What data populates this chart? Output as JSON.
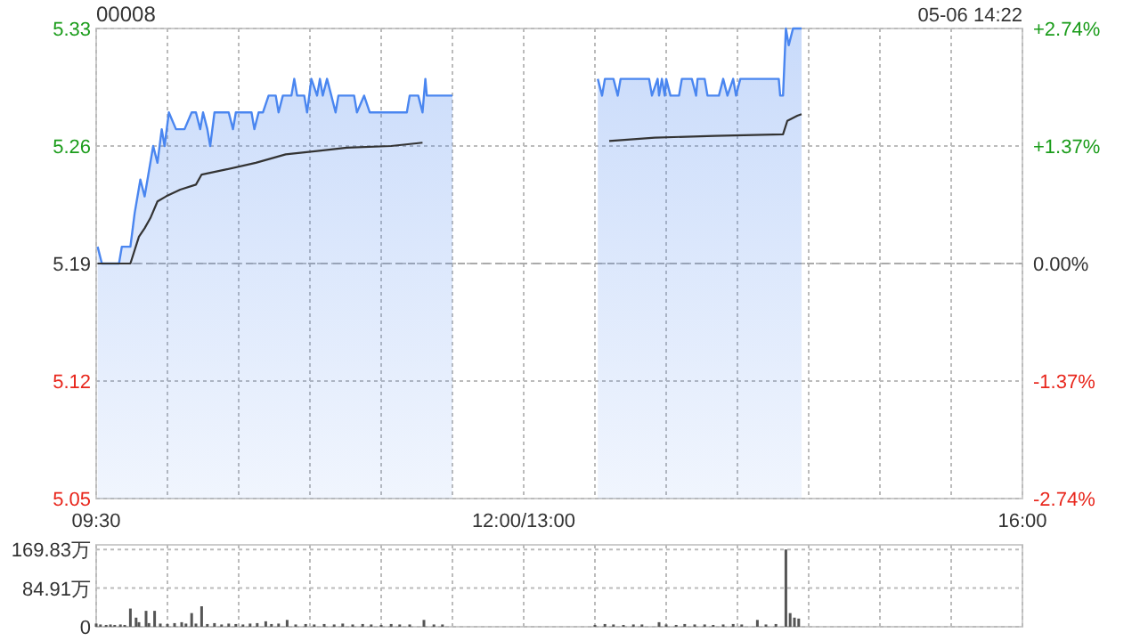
{
  "chart_data": [
    {
      "type": "area",
      "title": "00008",
      "annotations": [
        "05-06 14:22"
      ],
      "xlim": [
        9.5,
        16
      ],
      "xticks": [
        {
          "value": 9.5,
          "label": "09:30"
        },
        {
          "value": 10,
          "label": null
        },
        {
          "value": 10.5,
          "label": null
        },
        {
          "value": 11,
          "label": null
        },
        {
          "value": 11.5,
          "label": null
        },
        {
          "value": 12,
          "label": null
        },
        {
          "value": 12.5,
          "label": "12:00/13:00"
        },
        {
          "value": 13,
          "label": null
        },
        {
          "value": 13.5,
          "label": null
        },
        {
          "value": 14,
          "label": null
        },
        {
          "value": 14.5,
          "label": null
        },
        {
          "value": 15,
          "label": null
        },
        {
          "value": 15.5,
          "label": null
        },
        {
          "value": 16,
          "label": "16:00"
        }
      ],
      "ylim": [
        5.05,
        5.33
      ],
      "yticks": [
        5.05,
        5.12,
        5.19,
        5.26,
        5.33
      ],
      "y2lim": [
        -2.74,
        2.74
      ],
      "y2ticks": [
        {
          "value": -2.74,
          "label": "-2.74%"
        },
        {
          "value": -1.37,
          "label": "-1.37%"
        },
        {
          "value": 0,
          "label": "0.00%"
        },
        {
          "value": 1.37,
          "label": "+1.37%"
        },
        {
          "value": 2.74,
          "label": "+2.74%"
        }
      ],
      "grid": true,
      "ref_lines": [
        {
          "axis": "y",
          "value": 5.19,
          "color": "#aaaaaa",
          "line_style": "dashed"
        }
      ],
      "series": [
        {
          "type": "area",
          "color": "#4a86f0",
          "x": [
            9.51,
            9.54,
            9.66,
            9.68,
            9.74,
            9.77,
            9.81,
            9.84,
            9.86,
            9.9,
            9.93,
            9.96,
            9.98,
            10.01,
            10.06,
            10.12,
            10.17,
            10.2,
            10.23,
            10.25,
            10.28,
            10.3,
            10.33,
            10.43,
            10.46,
            10.48,
            10.59,
            10.61,
            10.64,
            10.67,
            10.71,
            10.76,
            10.78,
            10.81,
            10.87,
            10.89,
            10.91,
            10.96,
            10.98,
            11.01,
            11.05,
            11.07,
            11.09,
            11.12,
            11.15,
            11.18,
            11.2,
            11.31,
            11.33,
            11.38,
            11.42,
            11.68,
            11.7,
            11.76,
            11.79,
            11.81,
            11.82,
            12.0,
            12.5,
            13.02,
            13.05,
            13.07,
            13.13,
            13.16,
            13.18,
            13.38,
            13.4,
            13.44,
            13.45,
            13.47,
            13.49,
            13.5,
            13.53,
            13.59,
            13.61,
            13.68,
            13.71,
            13.72,
            13.77,
            13.79,
            13.87,
            13.9,
            13.93,
            13.97,
            13.99,
            14.02,
            14.29,
            14.3,
            14.32,
            14.34,
            14.36,
            14.39,
            14.45
          ],
          "values": [
            5.2,
            5.19,
            5.19,
            5.2,
            5.2,
            5.22,
            5.24,
            5.23,
            5.24,
            5.26,
            5.25,
            5.27,
            5.26,
            5.28,
            5.27,
            5.27,
            5.28,
            5.28,
            5.27,
            5.28,
            5.27,
            5.26,
            5.28,
            5.28,
            5.27,
            5.28,
            5.28,
            5.27,
            5.28,
            5.28,
            5.29,
            5.29,
            5.28,
            5.29,
            5.29,
            5.3,
            5.29,
            5.29,
            5.28,
            5.3,
            5.29,
            5.3,
            5.29,
            5.3,
            5.29,
            5.28,
            5.29,
            5.29,
            5.28,
            5.29,
            5.28,
            5.28,
            5.29,
            5.29,
            5.28,
            5.3,
            5.29,
            5.29,
            null,
            5.3,
            5.29,
            5.3,
            5.3,
            5.29,
            5.3,
            5.3,
            5.29,
            5.3,
            5.29,
            5.3,
            5.29,
            5.3,
            5.29,
            5.29,
            5.3,
            5.3,
            5.29,
            5.3,
            5.3,
            5.29,
            5.29,
            5.3,
            5.29,
            5.3,
            5.29,
            5.3,
            5.3,
            5.29,
            5.29,
            5.33,
            5.32,
            5.33,
            5.33
          ]
        },
        {
          "type": "line",
          "color": "#333333",
          "x": [
            9.51,
            9.74,
            9.8,
            9.84,
            9.88,
            9.93,
            9.99,
            10.09,
            10.2,
            10.24,
            10.41,
            10.62,
            10.83,
            11.05,
            11.26,
            11.57,
            11.79,
            12.5,
            13.1,
            13.42,
            13.84,
            14.32,
            14.35,
            14.42,
            14.45
          ],
          "values": [
            5.19,
            5.19,
            5.206,
            5.211,
            5.217,
            5.227,
            5.23,
            5.234,
            5.237,
            5.243,
            5.246,
            5.25,
            5.255,
            5.257,
            5.259,
            5.26,
            5.262,
            null,
            5.263,
            5.265,
            5.266,
            5.267,
            5.275,
            5.278,
            5.279
          ]
        }
      ]
    },
    {
      "type": "bar",
      "xlim": [
        9.5,
        16
      ],
      "tick_labels": "y",
      "grid": true,
      "xticks": [
        {
          "value": 9.5,
          "label": null
        },
        {
          "value": 10,
          "label": null
        },
        {
          "value": 10.5,
          "label": null
        },
        {
          "value": 11,
          "label": null
        },
        {
          "value": 11.5,
          "label": null
        },
        {
          "value": 12,
          "label": null
        },
        {
          "value": 12.5,
          "label": null
        },
        {
          "value": 13,
          "label": null
        },
        {
          "value": 13.5,
          "label": null
        },
        {
          "value": 14,
          "label": null
        },
        {
          "value": 14.5,
          "label": null
        },
        {
          "value": 15,
          "label": null
        },
        {
          "value": 15.5,
          "label": null
        },
        {
          "value": 16,
          "label": null
        }
      ],
      "ylim": [
        0,
        180
      ],
      "yticks": [
        {
          "value": 0,
          "label": "0"
        },
        {
          "value": 84.91,
          "label": "84.91万"
        },
        {
          "value": 169.83,
          "label": "169.83万"
        }
      ],
      "series": [
        {
          "color": "#555555",
          "x": [
            9.5,
            9.53,
            9.57,
            9.6,
            9.63,
            9.67,
            9.7,
            9.74,
            9.78,
            9.8,
            9.85,
            9.87,
            9.91,
            9.95,
            10,
            10.05,
            10.1,
            10.13,
            10.17,
            10.2,
            10.24,
            10.28,
            10.33,
            10.38,
            10.43,
            10.48,
            10.53,
            10.58,
            10.63,
            10.69,
            10.73,
            10.78,
            10.84,
            10.9,
            10.97,
            11.03,
            11.1,
            11.17,
            11.23,
            11.3,
            11.37,
            11.43,
            11.5,
            11.57,
            11.63,
            11.7,
            11.8,
            11.87,
            11.93,
            13.0,
            13.07,
            13.13,
            13.2,
            13.27,
            13.33,
            13.45,
            13.5,
            13.57,
            13.63,
            13.7,
            13.77,
            13.83,
            13.9,
            13.97,
            14.03,
            14.14,
            14.2,
            14.27,
            14.34,
            14.37,
            14.4,
            14.43
          ],
          "values": [
            7,
            5,
            4,
            5,
            4,
            5,
            4,
            40,
            20,
            10,
            35,
            8,
            35,
            7,
            6,
            8,
            10,
            7,
            30,
            7,
            45,
            6,
            8,
            5,
            7,
            6,
            5,
            7,
            8,
            12,
            6,
            7,
            15,
            5,
            6,
            5,
            6,
            5,
            7,
            5,
            6,
            5,
            4,
            6,
            5,
            5,
            15,
            5,
            5,
            4,
            6,
            5,
            4,
            5,
            5,
            10,
            5,
            4,
            6,
            5,
            5,
            4,
            5,
            6,
            5,
            15,
            5,
            6,
            169.83,
            30,
            20,
            18
          ]
        }
      ]
    }
  ]
}
